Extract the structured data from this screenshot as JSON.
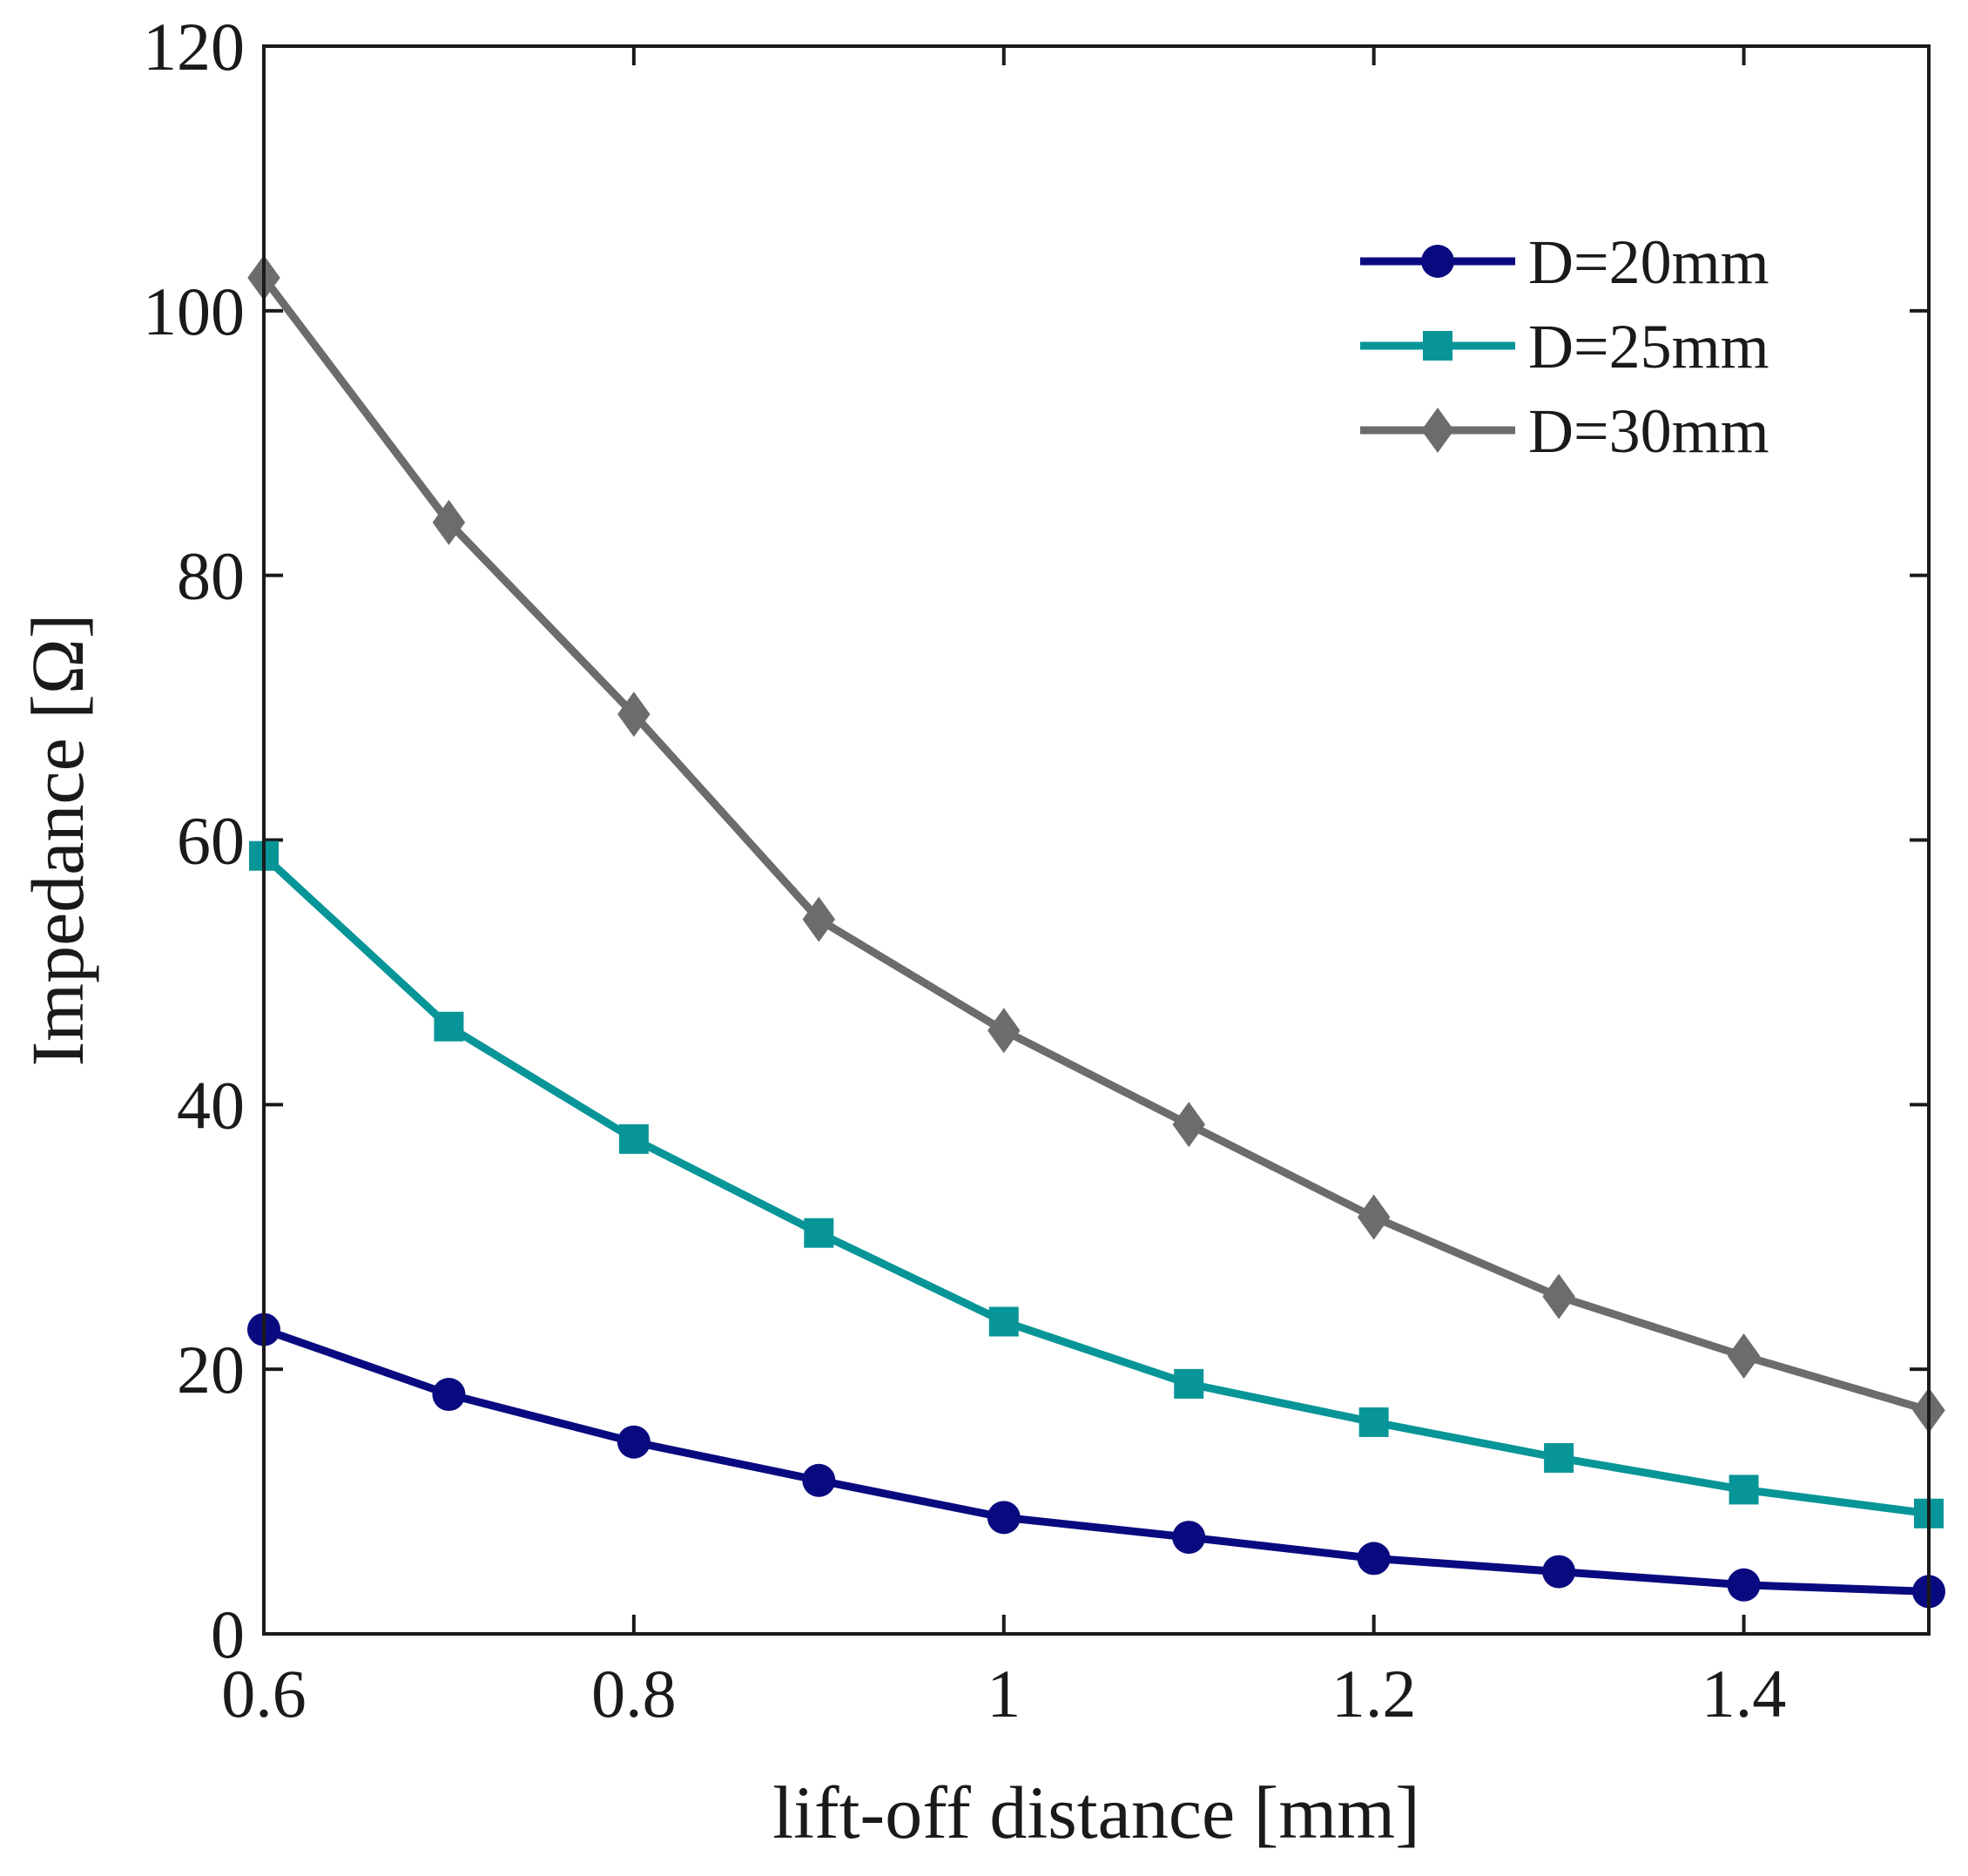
{
  "chart_data": {
    "type": "line",
    "title": "",
    "xlabel": "lift-off distance [mm]",
    "ylabel": "Impedance [Ω]",
    "xlim": [
      0.6,
      1.5
    ],
    "ylim": [
      0,
      120
    ],
    "xticks": [
      0.6,
      0.8,
      1,
      1.2,
      1.4
    ],
    "xtick_labels": [
      "0.6",
      "0.8",
      "1",
      "1.2",
      "1.4"
    ],
    "yticks": [
      0,
      20,
      40,
      60,
      80,
      100,
      120
    ],
    "ytick_labels": [
      "0",
      "20",
      "40",
      "60",
      "80",
      "100",
      "120"
    ],
    "grid": false,
    "legend_position": "top-right",
    "x": [
      0.6,
      0.7,
      0.8,
      0.9,
      1.0,
      1.1,
      1.2,
      1.3,
      1.4,
      1.5
    ],
    "series": [
      {
        "name": "D=20mm",
        "color": "#0a0a80",
        "marker": "circle",
        "values": [
          23.0,
          18.1,
          14.5,
          11.6,
          8.8,
          7.3,
          5.7,
          4.7,
          3.7,
          3.2
        ]
      },
      {
        "name": "D=25mm",
        "color": "#089598",
        "marker": "square",
        "values": [
          58.8,
          45.9,
          37.4,
          30.3,
          23.6,
          18.9,
          16.0,
          13.3,
          10.9,
          9.1
        ]
      },
      {
        "name": "D=30mm",
        "color": "#6c6c6c",
        "marker": "diamond",
        "values": [
          102.5,
          84.0,
          69.5,
          54.0,
          45.6,
          38.5,
          31.5,
          25.5,
          21.0,
          16.9
        ]
      }
    ]
  }
}
